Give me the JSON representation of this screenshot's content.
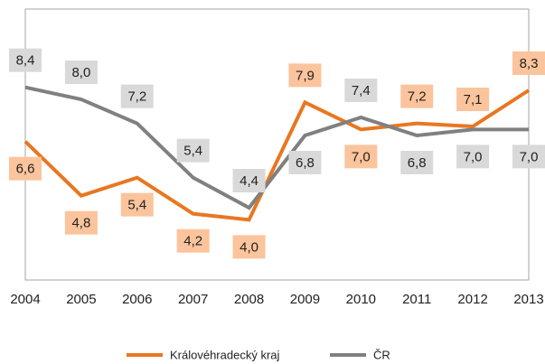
{
  "chart_data": {
    "type": "line",
    "categories": [
      "2004",
      "2005",
      "2006",
      "2007",
      "2008",
      "2009",
      "2010",
      "2011",
      "2012",
      "2013"
    ],
    "ylim": [
      2,
      11
    ],
    "series": [
      {
        "name": "Královéhradecký kraj",
        "color": "#e87722",
        "label_color": "#fbc49c",
        "values": [
          6.6,
          4.8,
          5.4,
          4.2,
          4.0,
          7.9,
          7.0,
          7.2,
          7.1,
          8.3
        ],
        "value_labels": [
          "6,6",
          "4,8",
          "5,4",
          "4,2",
          "4,0",
          "7,9",
          "7,0",
          "7,2",
          "7,1",
          "8,3"
        ]
      },
      {
        "name": "ČR",
        "color": "#808080",
        "label_color": "#d9d9d9",
        "values": [
          8.4,
          8.0,
          7.2,
          5.4,
          4.4,
          6.8,
          7.4,
          6.8,
          7.0,
          7.0
        ],
        "value_labels": [
          "8,4",
          "8,0",
          "7,2",
          "5,4",
          "4,4",
          "6,8",
          "7,4",
          "6,8",
          "7,0",
          "7,0"
        ]
      }
    ],
    "legend": "bottom"
  }
}
